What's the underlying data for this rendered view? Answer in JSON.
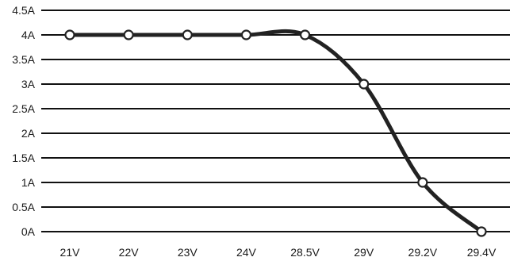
{
  "chart_data": {
    "type": "line",
    "title": "",
    "xlabel": "",
    "ylabel": "",
    "categories": [
      "21V",
      "22V",
      "23V",
      "24V",
      "28.5V",
      "29V",
      "29.2V",
      "29.4V"
    ],
    "series": [
      {
        "values": [
          4,
          4,
          4,
          4,
          4,
          3,
          1,
          0
        ]
      }
    ],
    "ylim": [
      0,
      4.5
    ],
    "y_ticks": [
      "0A",
      "0.5A",
      "1A",
      "1.5A",
      "2A",
      "2.5A",
      "3A",
      "3.5A",
      "4A",
      "4.5A"
    ],
    "grid": true,
    "legend": "none",
    "colors": {
      "line": "#222222",
      "grid": "#111111",
      "marker_fill": "#ffffff"
    }
  }
}
